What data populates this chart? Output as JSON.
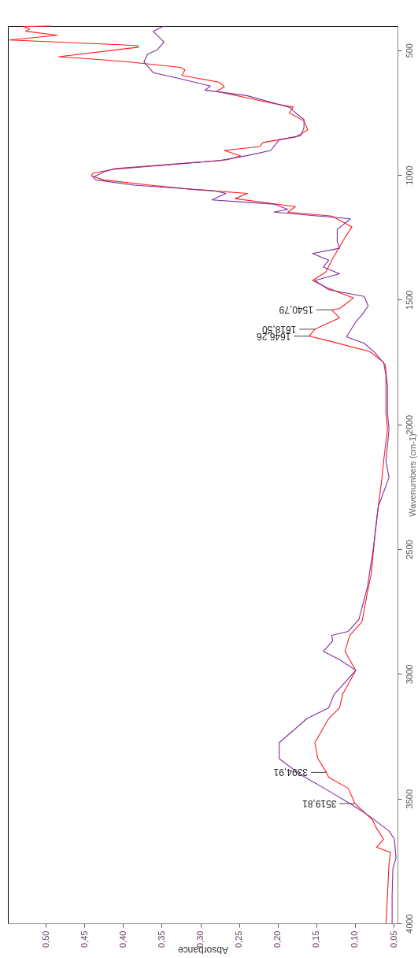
{
  "chart_data": {
    "type": "line",
    "orientation": "horizontal",
    "xlabel": "Absorbance",
    "ylabel": "Wavenumbers (cm-1)",
    "xlim": [
      0.549,
      0.045
    ],
    "xticks": [
      {
        "value": 0.05,
        "label": "0,05"
      },
      {
        "value": 0.1,
        "label": "0,10"
      },
      {
        "value": 0.15,
        "label": "0,15"
      },
      {
        "value": 0.2,
        "label": "0,20"
      },
      {
        "value": 0.25,
        "label": "0,25"
      },
      {
        "value": 0.3,
        "label": "0,30"
      },
      {
        "value": 0.35,
        "label": "0,35"
      },
      {
        "value": 0.4,
        "label": "0,40"
      },
      {
        "value": 0.45,
        "label": "0,45"
      },
      {
        "value": 0.5,
        "label": "0,50"
      }
    ],
    "ylim": [
      4000,
      403
    ],
    "yticks": [
      500,
      1000,
      1500,
      2000,
      2500,
      3000,
      3500,
      4000
    ],
    "grid": false,
    "marker": "none",
    "line_style": "solid",
    "series": [
      {
        "color": "#ff1a1a",
        "x": [
          403,
          405,
          416,
          424,
          440,
          459,
          481,
          488,
          526,
          539,
          549,
          569,
          579,
          601,
          628,
          646,
          665,
          714,
          728,
          751,
          784,
          819,
          848,
          870,
          886,
          902,
          923,
          939,
          961,
          977,
          993,
          1004,
          1020,
          1041,
          1058,
          1074,
          1095,
          1127,
          1149,
          1165,
          1208,
          1251,
          1288,
          1342,
          1390,
          1423,
          1455,
          1493,
          1536,
          1540.79,
          1573,
          1618.5,
          1646.26,
          1665,
          1708,
          1751,
          1804,
          1901,
          1955,
          2019,
          2148,
          2213,
          2330,
          2437,
          2599,
          2674,
          2792,
          2846,
          2910,
          2986,
          3082,
          3136,
          3179,
          3276,
          3340,
          3394.91,
          3415,
          3458,
          3519.81,
          3587,
          3620,
          3663,
          3695,
          3716,
          3759,
          3888,
          4000
        ],
        "values": [
          0.494,
          0.529,
          0.521,
          0.526,
          0.485,
          0.547,
          0.382,
          0.38,
          0.483,
          0.425,
          0.386,
          0.326,
          0.32,
          0.324,
          0.276,
          0.269,
          0.279,
          0.205,
          0.18,
          0.185,
          0.166,
          0.161,
          0.177,
          0.219,
          0.223,
          0.269,
          0.248,
          0.265,
          0.347,
          0.411,
          0.439,
          0.441,
          0.425,
          0.365,
          0.311,
          0.239,
          0.255,
          0.177,
          0.187,
          0.13,
          0.104,
          0.113,
          0.12,
          0.13,
          0.138,
          0.155,
          0.134,
          0.102,
          0.12,
          0.13,
          0.12,
          0.152,
          0.159,
          0.134,
          0.081,
          0.063,
          0.06,
          0.06,
          0.06,
          0.058,
          0.063,
          0.065,
          0.07,
          0.074,
          0.079,
          0.084,
          0.091,
          0.107,
          0.113,
          0.099,
          0.116,
          0.12,
          0.134,
          0.152,
          0.148,
          0.137,
          0.134,
          0.109,
          0.1,
          0.077,
          0.072,
          0.063,
          0.072,
          0.054,
          0.056,
          0.058,
          0.06
        ]
      },
      {
        "color": "#7b2fa0",
        "x": [
          403,
          424,
          467,
          499,
          515,
          547,
          590,
          612,
          644,
          660,
          682,
          730,
          751,
          778,
          810,
          843,
          859,
          902,
          923,
          943,
          955,
          975,
          988,
          1009,
          1020,
          1041,
          1063,
          1074,
          1100,
          1117,
          1138,
          1149,
          1176,
          1219,
          1267,
          1294,
          1315,
          1342,
          1369,
          1396,
          1423,
          1460,
          1487,
          1525,
          1557,
          1589,
          1649,
          1675,
          1713,
          1761,
          1847,
          1955,
          2019,
          2148,
          2213,
          2330,
          2491,
          2653,
          2782,
          2830,
          2846,
          2868,
          2910,
          2943,
          2986,
          3082,
          3136,
          3179,
          3276,
          3340,
          3405,
          3469,
          3534,
          3571,
          3630,
          3663,
          3738,
          3781,
          3888,
          4000
        ],
        "values": [
          0.347,
          0.361,
          0.347,
          0.356,
          0.368,
          0.373,
          0.361,
          0.329,
          0.287,
          0.294,
          0.24,
          0.184,
          0.177,
          0.166,
          0.166,
          0.17,
          0.198,
          0.209,
          0.24,
          0.276,
          0.329,
          0.411,
          0.425,
          0.439,
          0.435,
          0.386,
          0.283,
          0.267,
          0.285,
          0.205,
          0.187,
          0.205,
          0.106,
          0.123,
          0.123,
          0.12,
          0.155,
          0.134,
          0.141,
          0.12,
          0.152,
          0.134,
          0.088,
          0.083,
          0.09,
          0.099,
          0.111,
          0.088,
          0.074,
          0.061,
          0.058,
          0.058,
          0.056,
          0.06,
          0.056,
          0.07,
          0.076,
          0.084,
          0.095,
          0.109,
          0.13,
          0.129,
          0.141,
          0.12,
          0.099,
          0.127,
          0.134,
          0.162,
          0.198,
          0.198,
          0.17,
          0.134,
          0.099,
          0.081,
          0.056,
          0.049,
          0.047,
          0.051,
          0.052,
          0.052
        ]
      }
    ],
    "annotations": [
      {
        "text": "1540,79",
        "x": 0.13,
        "y": 1540.79
      },
      {
        "text": "1618,50",
        "x": 0.152,
        "y": 1618.5
      },
      {
        "text": "1646,26",
        "x": 0.159,
        "y": 1646.26
      },
      {
        "text": "3394,91",
        "x": 0.137,
        "y": 3394.91
      },
      {
        "text": "3519,81",
        "x": 0.1,
        "y": 3519.81
      }
    ]
  }
}
